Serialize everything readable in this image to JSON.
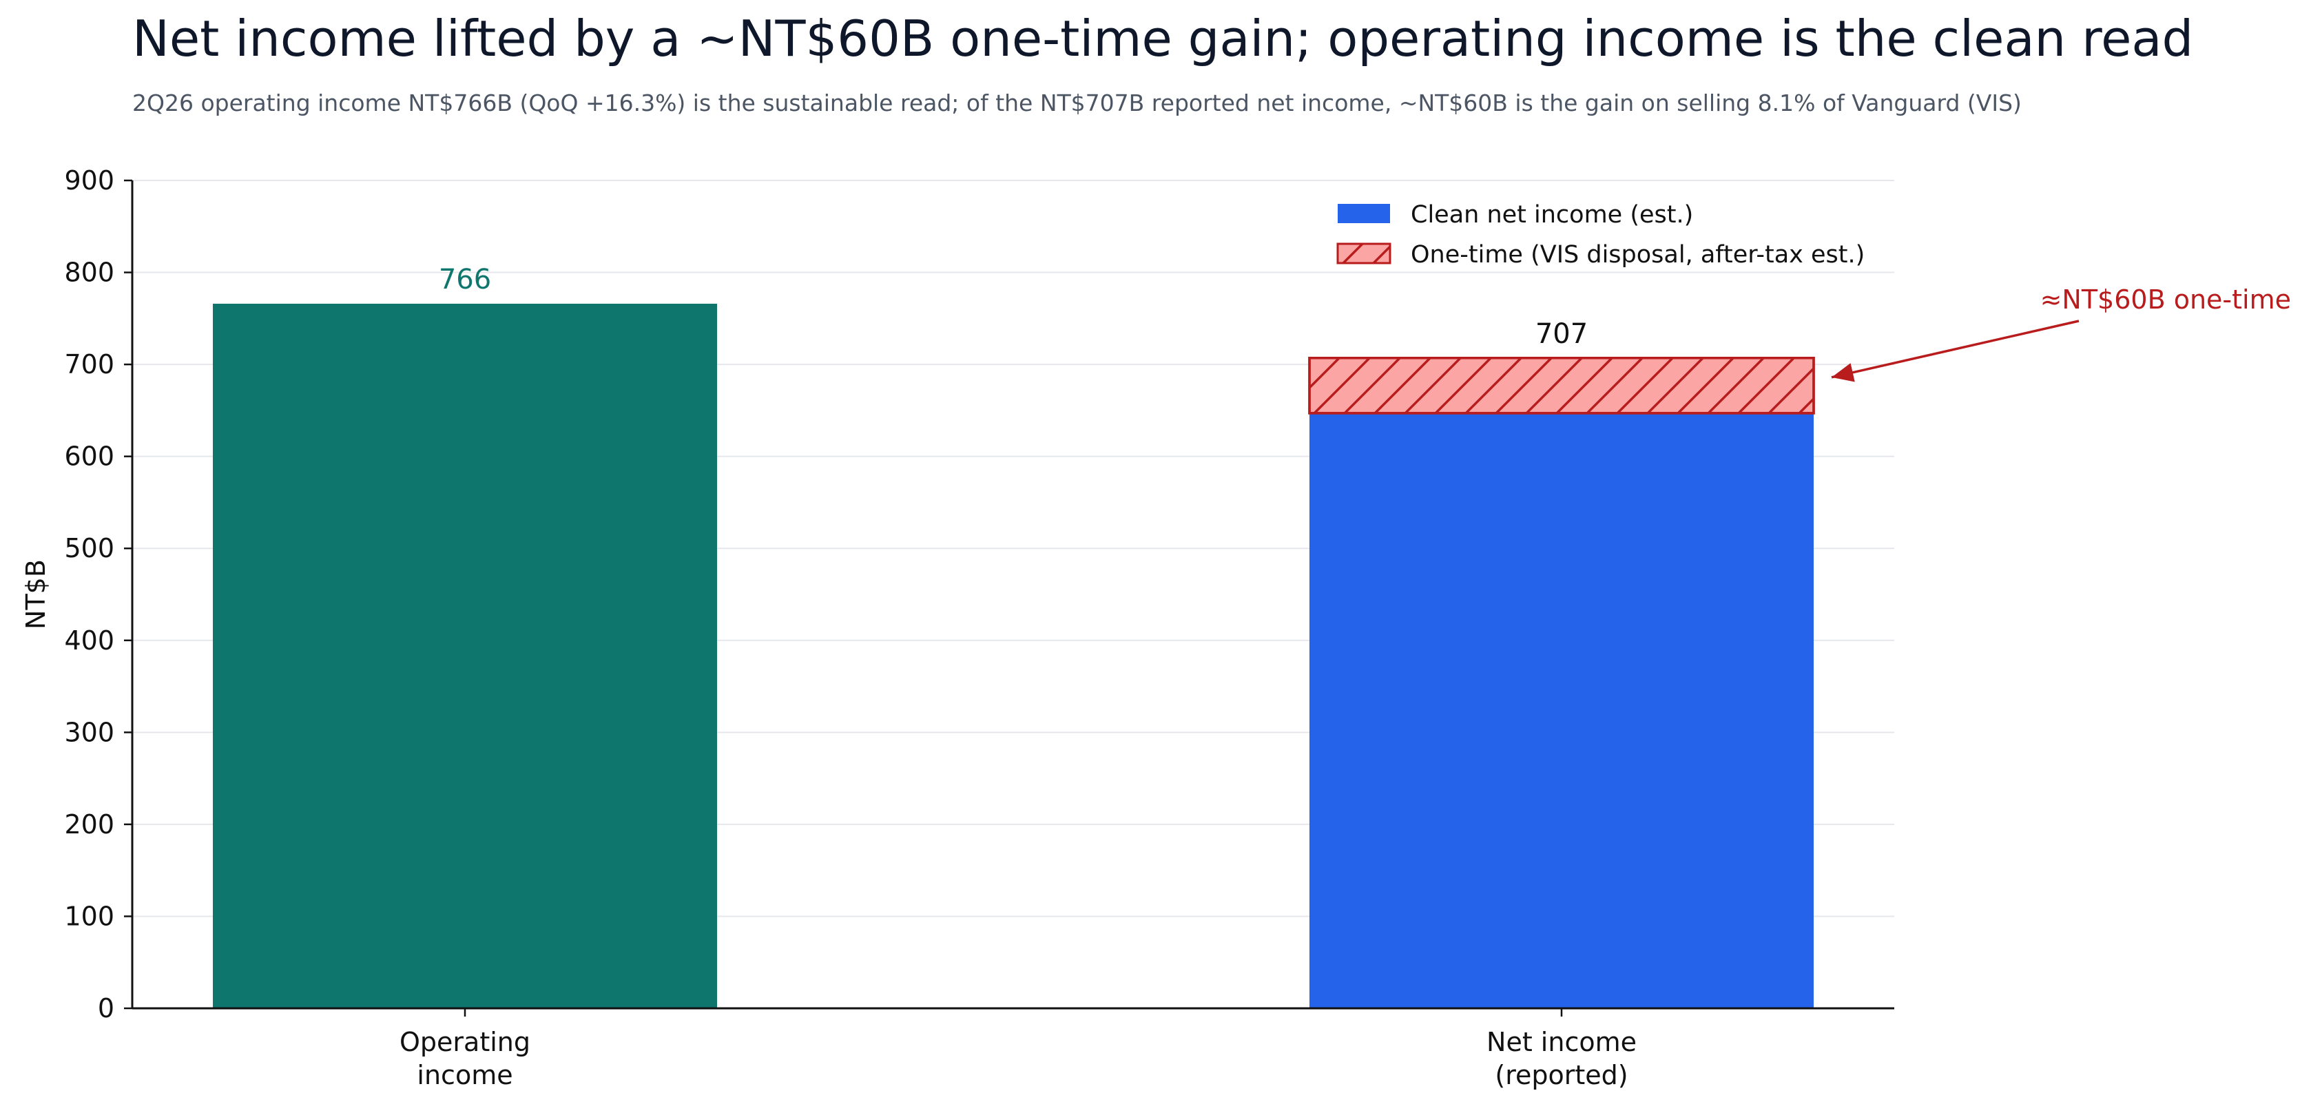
{
  "title": "Net income lifted by a ~NT$60B one-time gain; operating income is the clean read",
  "subtitle": "2Q26 operating income NT$766B (QoQ +16.3%) is the sustainable read; of the NT$707B reported net income, ~NT$60B is the gain on selling 8.1% of Vanguard (VIS)",
  "colors": {
    "operating": "#0f766e",
    "clean": "#2563eb",
    "onetime_fill": "#fca5a5",
    "onetime_edge": "#b91c1c",
    "annotation": "#b91c1c",
    "grid": "#e5e7eb",
    "axis": "#111111"
  },
  "chart_data": {
    "type": "bar",
    "stacked": true,
    "categories": [
      [
        "Operating",
        "income"
      ],
      [
        "Net income",
        "(reported)"
      ]
    ],
    "ylabel": "NT$B",
    "xlabel": "",
    "ylim": [
      0,
      900
    ],
    "yticks": [
      0,
      100,
      200,
      300,
      400,
      500,
      600,
      700,
      800,
      900
    ],
    "grid": true,
    "legend_position": "top-right",
    "bars": [
      {
        "category_index": 0,
        "total": 766,
        "total_label": "766",
        "label_color": "#0f766e",
        "segments": [
          {
            "value": 766,
            "color": "#0f766e",
            "hatch": false
          }
        ]
      },
      {
        "category_index": 1,
        "total": 707,
        "total_label": "707",
        "label_color": "#111111",
        "segments": [
          {
            "series": "Clean net income (est.)",
            "value": 647,
            "color": "#2563eb",
            "hatch": false
          },
          {
            "series": "One-time (VIS disposal, after-tax est.)",
            "value": 60,
            "color": "#fca5a5",
            "edge": "#b91c1c",
            "hatch": true
          }
        ]
      }
    ],
    "legend": [
      {
        "label": "Clean net income (est.)",
        "color": "#2563eb",
        "hatch": false
      },
      {
        "label": "One-time (VIS disposal, after-tax est.)",
        "color": "#fca5a5",
        "edge": "#b91c1c",
        "hatch": true
      }
    ],
    "annotation": {
      "text": "≈NT$60B one-time",
      "points_to": {
        "category_index": 1,
        "y": 677
      },
      "color": "#b91c1c"
    }
  }
}
